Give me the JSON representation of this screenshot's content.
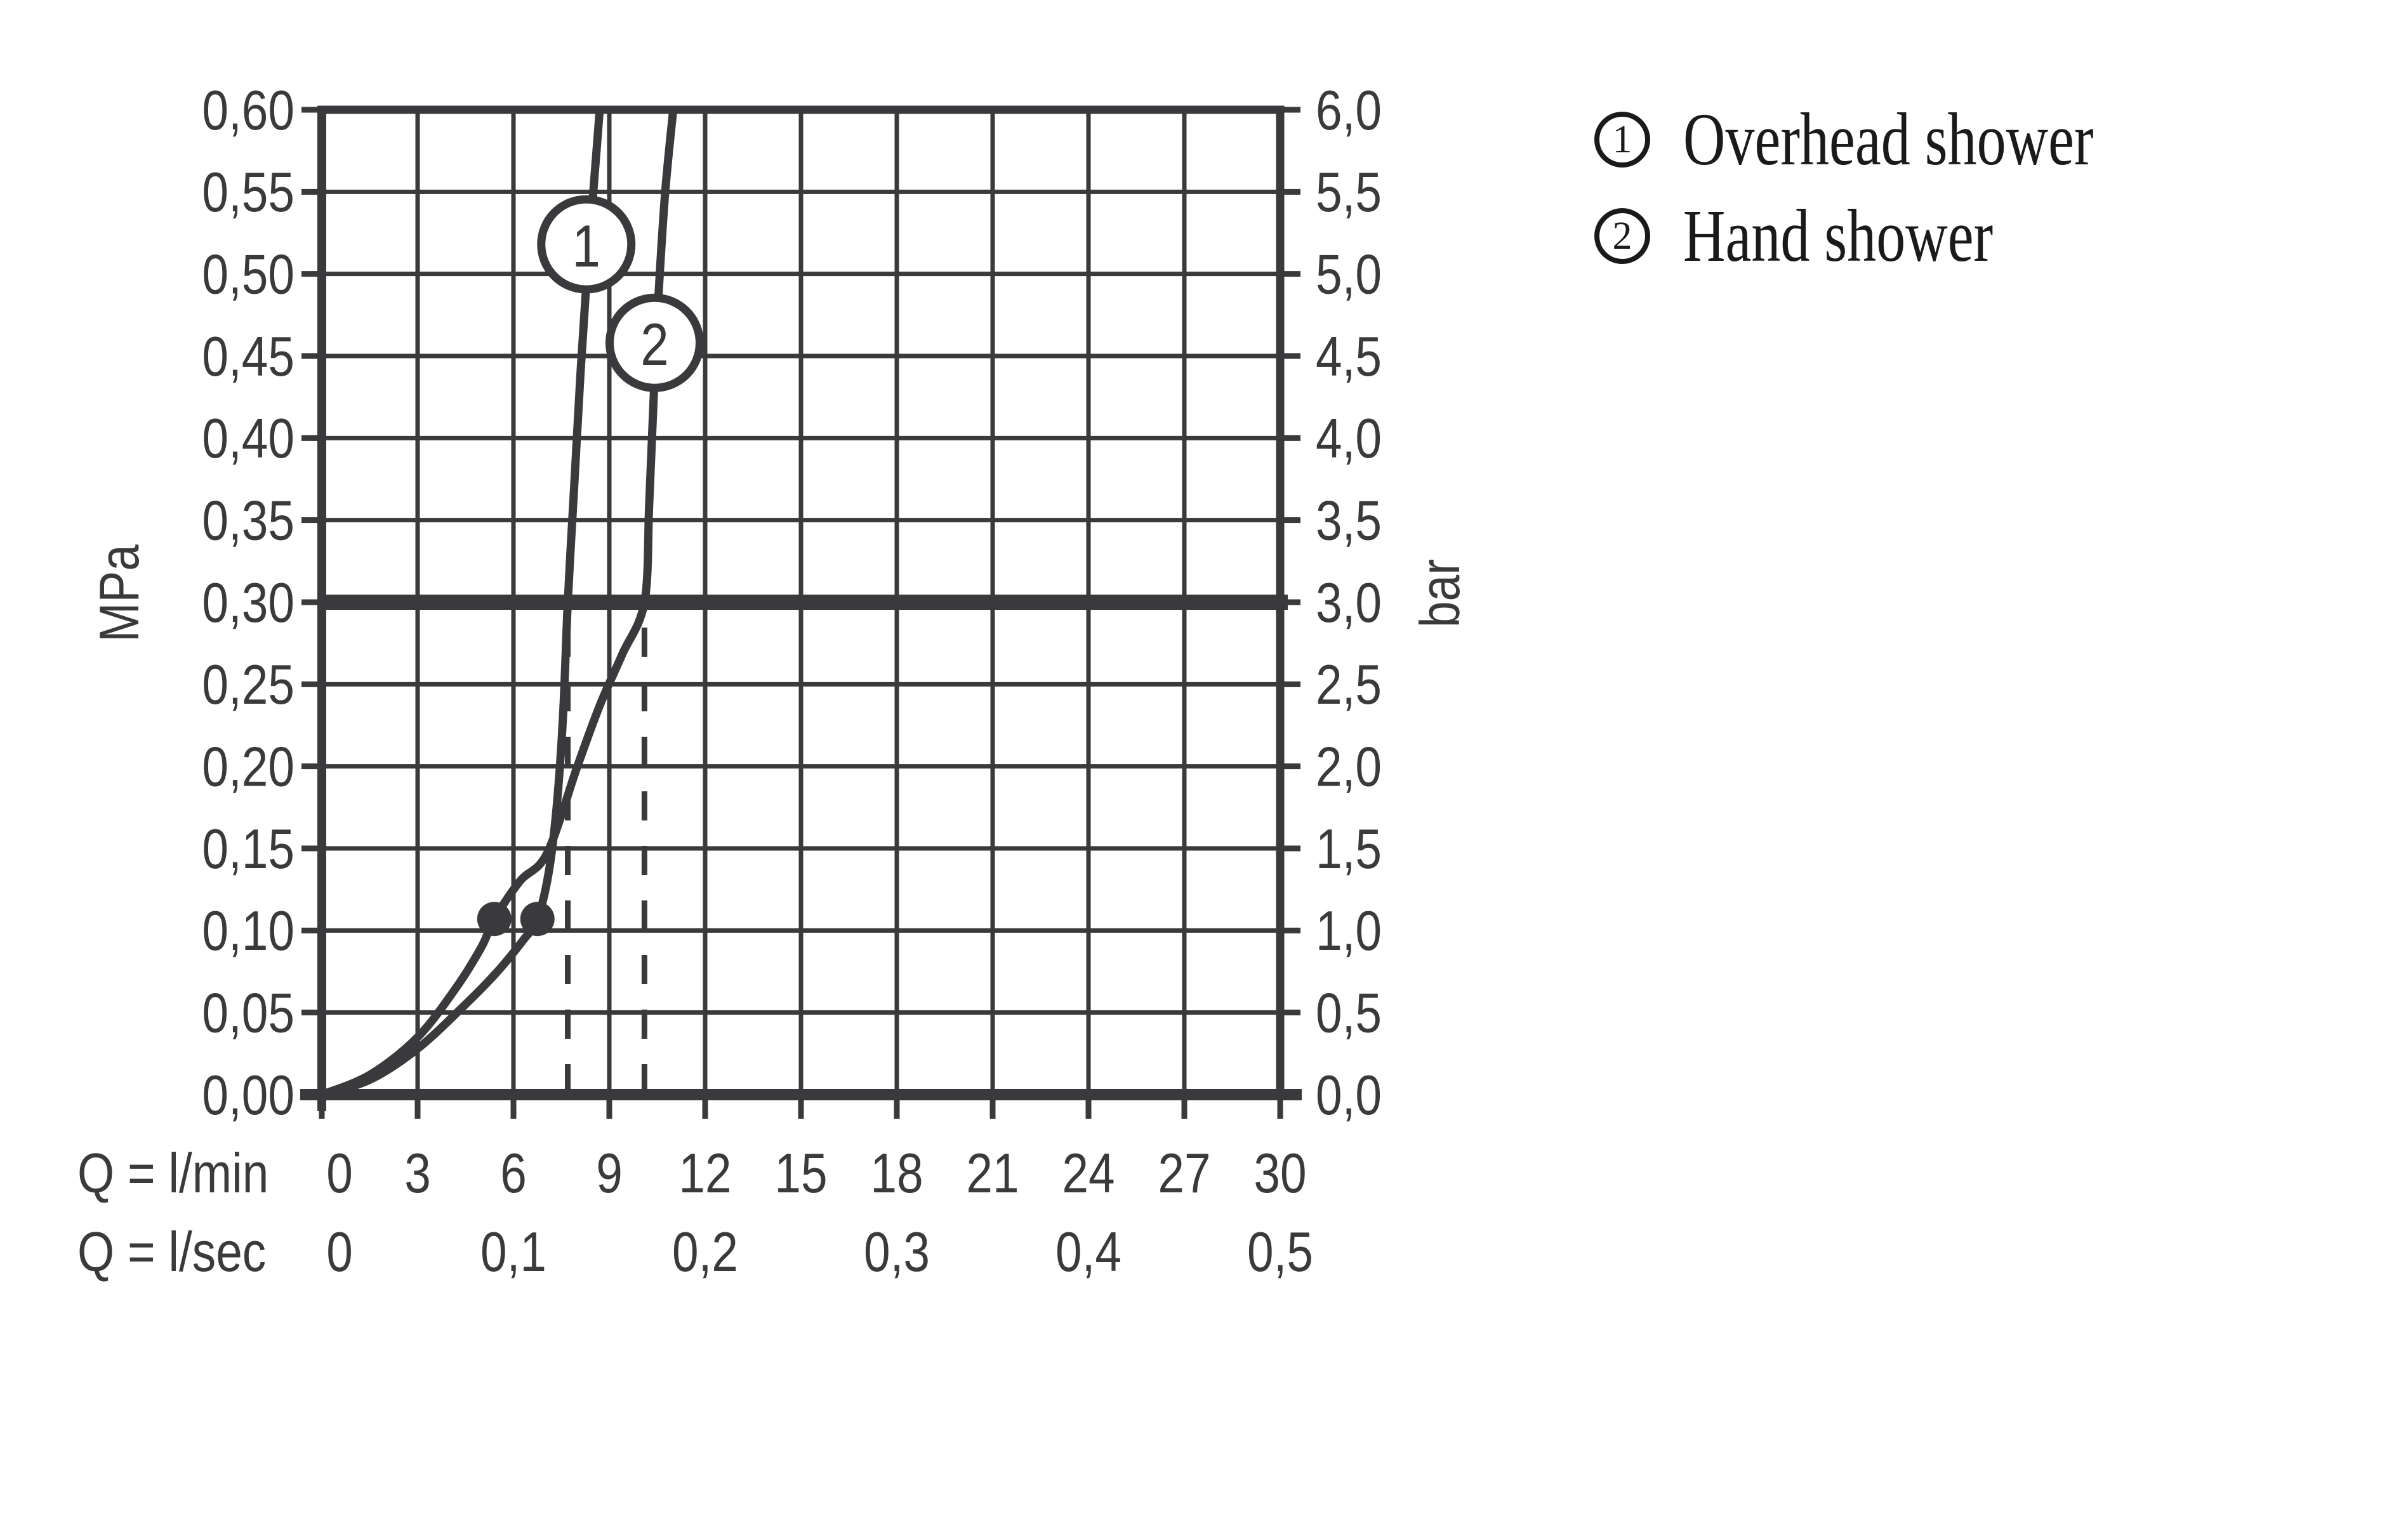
{
  "colors": {
    "background": "#ffffff",
    "chart_ink": "#3a3a3c",
    "legend_ink": "#1a1a1a"
  },
  "legend": {
    "items": [
      {
        "num": "1",
        "label": "Overhead shower"
      },
      {
        "num": "2",
        "label": "Hand shower"
      }
    ]
  },
  "chart_data": {
    "type": "line",
    "grid": true,
    "legend_position": "top-right",
    "x_axis": {
      "range": [
        0,
        30
      ],
      "grid_step": 3,
      "rows": [
        {
          "label": "Q = l/min",
          "ticks": [
            {
              "text": "0",
              "value": 0
            },
            {
              "text": "3",
              "value": 3
            },
            {
              "text": "6",
              "value": 6
            },
            {
              "text": "9",
              "value": 9
            },
            {
              "text": "12",
              "value": 12
            },
            {
              "text": "15",
              "value": 15
            },
            {
              "text": "18",
              "value": 18
            },
            {
              "text": "21",
              "value": 21
            },
            {
              "text": "24",
              "value": 24
            },
            {
              "text": "27",
              "value": 27
            },
            {
              "text": "30",
              "value": 30
            }
          ]
        },
        {
          "label": "Q = l/sec",
          "ticks": [
            {
              "text": "0",
              "value": 0
            },
            {
              "text": "0,1",
              "value": 6
            },
            {
              "text": "0,2",
              "value": 12
            },
            {
              "text": "0,3",
              "value": 18
            },
            {
              "text": "0,4",
              "value": 24
            },
            {
              "text": "0,5",
              "value": 30
            }
          ]
        }
      ]
    },
    "y_axis_left": {
      "unit": "MPa",
      "range": [
        0,
        0.6
      ],
      "grid_step": 0.05,
      "tick_labels": [
        "0,00",
        "0,05",
        "0,10",
        "0,15",
        "0,20",
        "0,25",
        "0,30",
        "0,35",
        "0,40",
        "0,45",
        "0,50",
        "0,55",
        "0,60"
      ]
    },
    "y_axis_right": {
      "unit": "bar",
      "tick_labels": [
        "0,0",
        "0,5",
        "1,0",
        "1,5",
        "2,0",
        "2,5",
        "3,0",
        "3,5",
        "4,0",
        "4,5",
        "5,0",
        "5,5",
        "6,0"
      ]
    },
    "reference_line_mpa": 0.3,
    "series": [
      {
        "num": "1",
        "name": "Overhead shower",
        "points": [
          [
            0,
            0
          ],
          [
            1.5,
            0.009
          ],
          [
            3,
            0.028
          ],
          [
            4.5,
            0.055
          ],
          [
            5.5,
            0.075
          ],
          [
            6.3,
            0.094
          ],
          [
            6.75,
            0.107
          ],
          [
            7.1,
            0.135
          ],
          [
            7.35,
            0.175
          ],
          [
            7.55,
            0.23
          ],
          [
            7.7,
            0.3
          ],
          [
            7.9,
            0.37
          ],
          [
            8.1,
            0.44
          ],
          [
            8.3,
            0.5
          ],
          [
            8.5,
            0.55
          ],
          [
            8.7,
            0.6
          ]
        ],
        "dot": [
          6.75,
          0.107
        ],
        "dashed_x": 7.7,
        "badge_at": [
          8.28,
          0.518
        ]
      },
      {
        "num": "2",
        "name": "Hand shower",
        "points": [
          [
            0,
            0
          ],
          [
            1.5,
            0.012
          ],
          [
            3,
            0.035
          ],
          [
            4.2,
            0.065
          ],
          [
            5,
            0.09
          ],
          [
            5.4,
            0.107
          ],
          [
            6.2,
            0.13
          ],
          [
            7.05,
            0.147
          ],
          [
            8,
            0.2
          ],
          [
            8.7,
            0.237
          ],
          [
            9.4,
            0.268
          ],
          [
            10.1,
            0.3
          ],
          [
            10.25,
            0.36
          ],
          [
            10.4,
            0.43
          ],
          [
            10.55,
            0.49
          ],
          [
            10.75,
            0.55
          ],
          [
            11,
            0.6
          ]
        ],
        "dot": [
          5.4,
          0.107
        ],
        "dashed_x": 10.1,
        "badge_at": [
          10.42,
          0.458
        ]
      }
    ]
  }
}
